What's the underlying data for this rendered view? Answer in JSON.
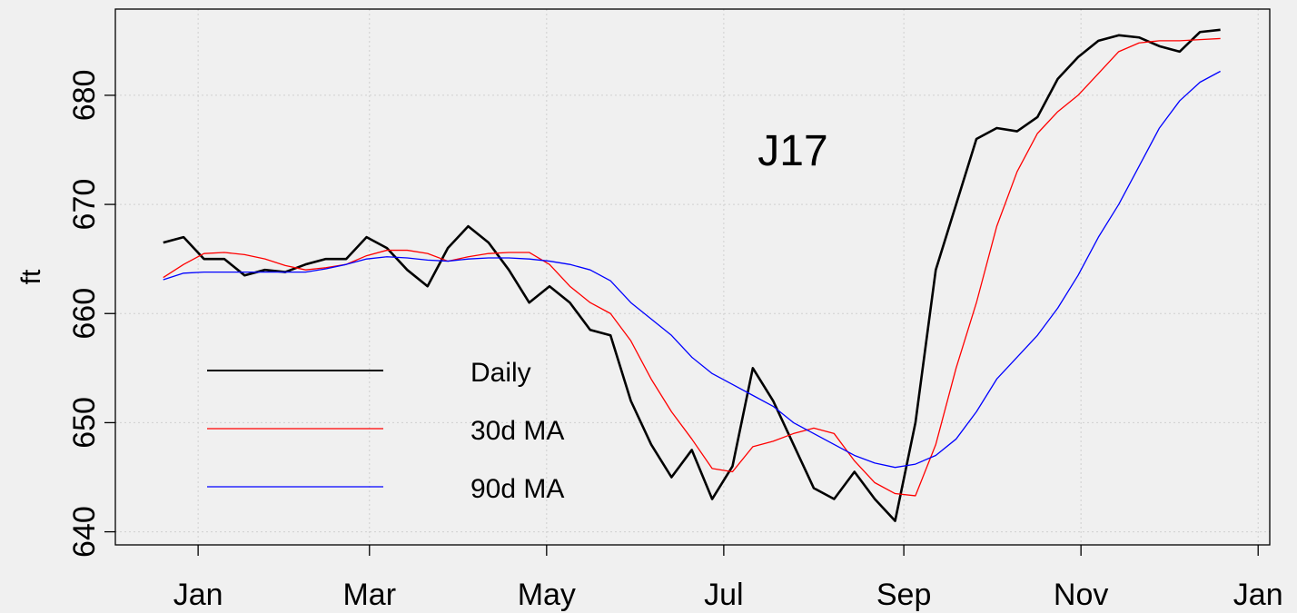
{
  "chart_data": {
    "type": "line",
    "title": "J17",
    "ylabel": "ft",
    "grid": true,
    "legend": "left",
    "x": [
      -12,
      -5,
      2,
      9,
      16,
      23,
      30,
      37,
      44,
      51,
      58,
      65,
      72,
      79,
      86,
      93,
      100,
      107,
      114,
      121,
      128,
      135,
      142,
      149,
      156,
      163,
      170,
      177,
      184,
      191,
      198,
      205,
      212,
      219,
      226,
      233,
      240,
      247,
      254,
      261,
      268,
      275,
      282,
      289,
      296,
      303,
      310,
      317,
      324,
      331,
      338,
      345,
      352
    ],
    "series": [
      {
        "name": "Daily",
        "color": "#000000",
        "values": [
          666.5,
          667,
          665,
          665,
          663.5,
          664,
          663.8,
          664.5,
          665,
          665,
          667,
          666,
          664,
          662.5,
          666,
          668,
          666.5,
          664,
          661,
          662.5,
          661,
          658.5,
          658,
          652,
          648,
          645,
          647.5,
          643,
          646,
          655,
          652,
          648,
          644,
          643,
          645.5,
          643,
          641,
          650,
          664,
          670,
          676,
          677,
          676.7,
          678,
          681.5,
          683.5,
          685,
          685.5,
          685.3,
          684.5,
          684,
          685.8,
          686
        ]
      },
      {
        "name": "30d MA",
        "color": "#ff0000",
        "values": [
          663.3,
          664.5,
          665.5,
          665.6,
          665.4,
          665,
          664.4,
          664,
          664.2,
          664.5,
          665.3,
          665.8,
          665.8,
          665.5,
          664.8,
          665.2,
          665.5,
          665.6,
          665.6,
          664.5,
          662.5,
          661,
          660,
          657.5,
          654,
          651,
          648.5,
          645.8,
          645.5,
          647.8,
          648.3,
          649,
          649.5,
          649,
          646.5,
          644.5,
          643.5,
          643.3,
          648,
          655,
          661,
          668,
          673,
          676.5,
          678.5,
          680,
          682,
          684,
          684.8,
          685,
          685,
          685.1,
          685.2
        ]
      },
      {
        "name": "90d MA",
        "color": "#0000ff",
        "values": [
          663.1,
          663.7,
          663.8,
          663.8,
          663.8,
          663.8,
          663.8,
          663.8,
          664.1,
          664.5,
          665,
          665.2,
          665.1,
          664.9,
          664.8,
          665,
          665.1,
          665.1,
          665,
          664.8,
          664.5,
          664,
          663,
          661,
          659.5,
          658,
          656,
          654.5,
          653.5,
          652.5,
          651.5,
          650,
          649,
          648,
          647,
          646.3,
          645.9,
          646.2,
          647,
          648.5,
          651,
          654,
          656,
          658,
          660.5,
          663.5,
          667,
          670,
          673.5,
          677,
          679.5,
          681.2,
          682.2
        ]
      }
    ],
    "xlim": [
      -28.5,
      369
    ],
    "xticks": [
      {
        "value": 0,
        "label": "Jan"
      },
      {
        "value": 59,
        "label": "Mar"
      },
      {
        "value": 120,
        "label": "May"
      },
      {
        "value": 181,
        "label": "Jul"
      },
      {
        "value": 243,
        "label": "Sep"
      },
      {
        "value": 304,
        "label": "Nov"
      },
      {
        "value": 365,
        "label": "Jan"
      }
    ],
    "ylim": [
      638.8,
      687.9
    ],
    "yticks": [
      640,
      650,
      660,
      670,
      680
    ]
  }
}
